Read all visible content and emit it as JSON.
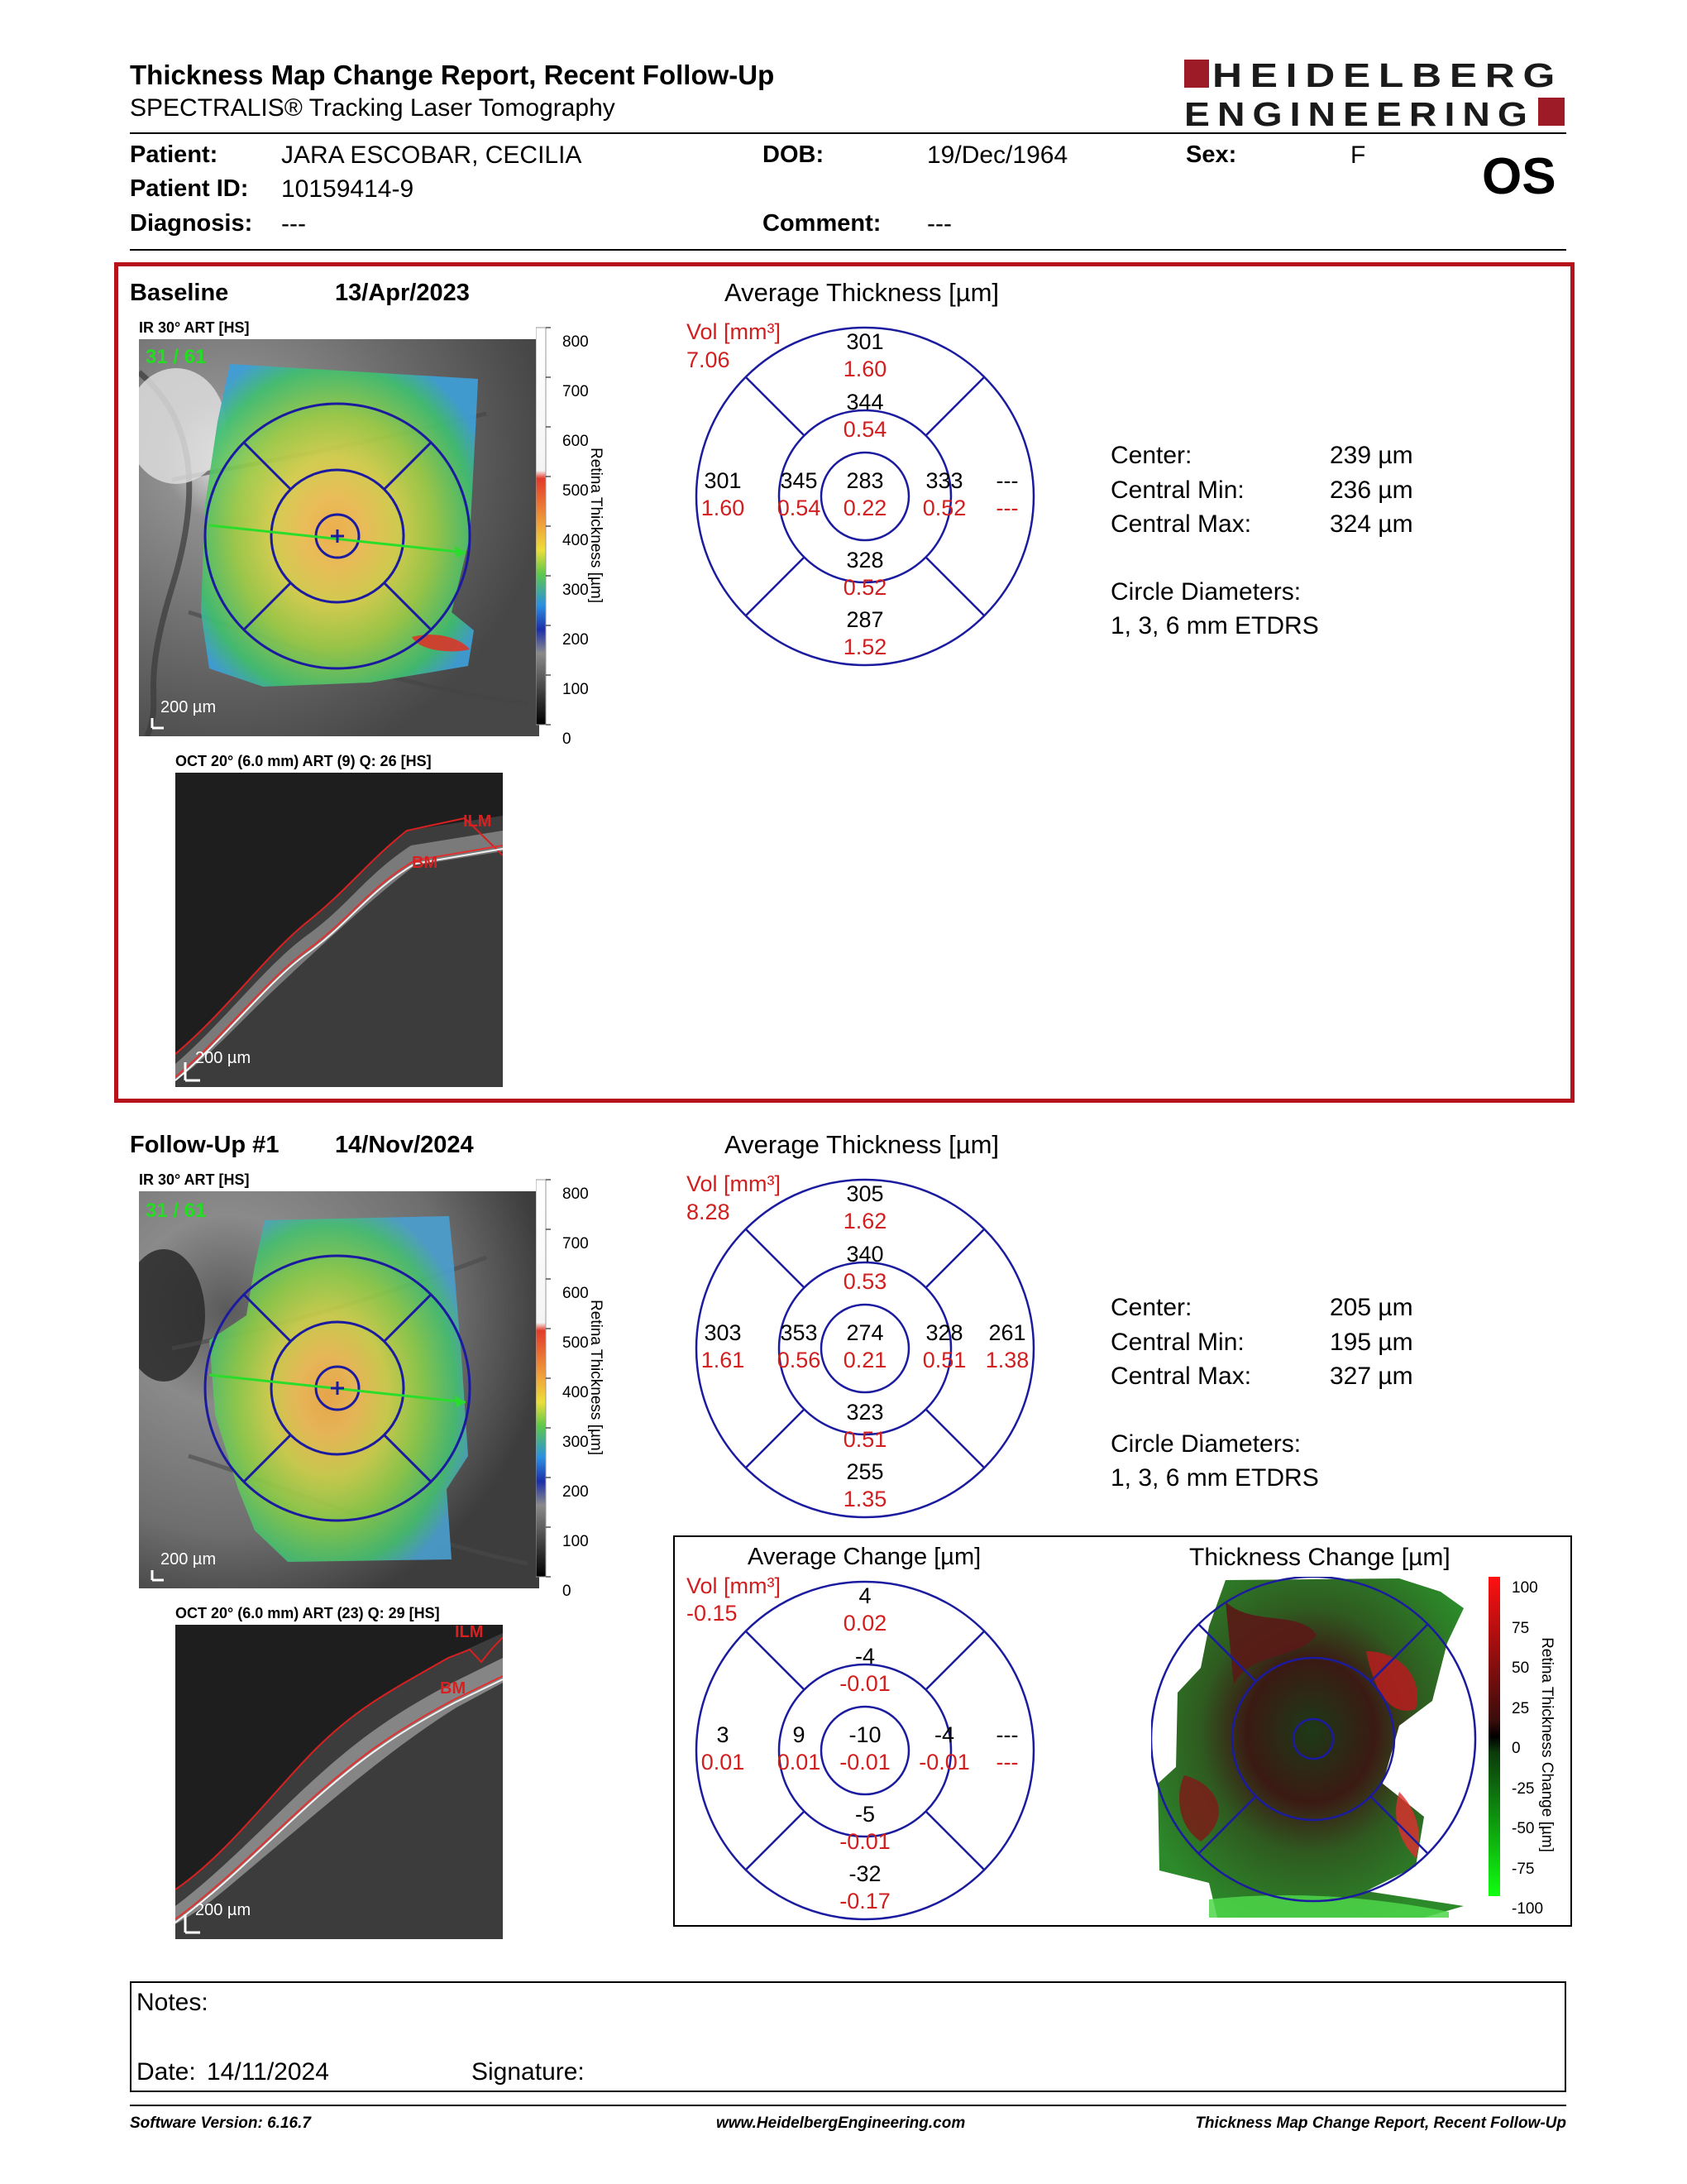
{
  "header": {
    "title": "Thickness Map Change Report, Recent Follow-Up",
    "subtitle": "SPECTRALIS® Tracking Laser Tomography",
    "logo_line1": "HEIDELBERG",
    "logo_line2": "ENGINEERING",
    "eye": "OS"
  },
  "patient": {
    "patient_label": "Patient:",
    "patient_value": "JARA ESCOBAR, CECILIA",
    "id_label": "Patient ID:",
    "id_value": "10159414-9",
    "diagnosis_label": "Diagnosis:",
    "diagnosis_value": "---",
    "dob_label": "DOB:",
    "dob_value": "19/Dec/1964",
    "comment_label": "Comment:",
    "comment_value": "---",
    "sex_label": "Sex:",
    "sex_value": "F"
  },
  "baseline": {
    "label": "Baseline",
    "date": "13/Apr/2023",
    "ir_caption": "IR 30° ART [HS]",
    "frame": "31 / 61",
    "scalebar": "200 µm",
    "colorbar_ticks": [
      "800",
      "700",
      "600",
      "500",
      "400",
      "300",
      "200",
      "100",
      "0"
    ],
    "colorbar_title": "Retina Thickness [µm]",
    "oct_caption": "OCT 20° (6.0 mm) ART (9) Q: 26 [HS]",
    "oct_scalebar": "200 µm",
    "ilm": "ILM",
    "bm": "BM",
    "avg_title": "Average Thickness [µm]",
    "vol_label": "Vol [mm³]",
    "vol_value": "7.06",
    "etdrs": {
      "center": [
        "283",
        "0.22"
      ],
      "inner_sup": [
        "344",
        "0.54"
      ],
      "inner_inf": [
        "328",
        "0.52"
      ],
      "inner_temp": [
        "345",
        "0.54"
      ],
      "inner_nas": [
        "333",
        "0.52"
      ],
      "outer_sup": [
        "301",
        "1.60"
      ],
      "outer_inf": [
        "287",
        "1.52"
      ],
      "outer_temp": [
        "301",
        "1.60"
      ],
      "outer_nas": [
        "---",
        "---"
      ]
    },
    "stats": {
      "center_label": "Center:",
      "center_value": "239 µm",
      "min_label": "Central Min:",
      "min_value": "236 µm",
      "max_label": "Central Max:",
      "max_value": "324 µm",
      "diam_label": "Circle Diameters:",
      "diam_value": "1, 3, 6 mm ETDRS"
    }
  },
  "followup": {
    "label": "Follow-Up #1",
    "date": "14/Nov/2024",
    "ir_caption": "IR 30° ART [HS]",
    "frame": "31 / 61",
    "scalebar": "200 µm",
    "colorbar_ticks": [
      "800",
      "700",
      "600",
      "500",
      "400",
      "300",
      "200",
      "100",
      "0"
    ],
    "colorbar_title": "Retina Thickness [µm]",
    "oct_caption": "OCT 20° (6.0 mm) ART (23) Q: 29 [HS]",
    "oct_scalebar": "200 µm",
    "ilm": "ILM",
    "bm": "BM",
    "avg_title": "Average Thickness [µm]",
    "vol_label": "Vol [mm³]",
    "vol_value": "8.28",
    "etdrs": {
      "center": [
        "274",
        "0.21"
      ],
      "inner_sup": [
        "340",
        "0.53"
      ],
      "inner_inf": [
        "323",
        "0.51"
      ],
      "inner_temp": [
        "353",
        "0.56"
      ],
      "inner_nas": [
        "328",
        "0.51"
      ],
      "outer_sup": [
        "305",
        "1.62"
      ],
      "outer_inf": [
        "255",
        "1.35"
      ],
      "outer_temp": [
        "303",
        "1.61"
      ],
      "outer_nas": [
        "261",
        "1.38"
      ]
    },
    "stats": {
      "center_label": "Center:",
      "center_value": "205 µm",
      "min_label": "Central Min:",
      "min_value": "195 µm",
      "max_label": "Central Max:",
      "max_value": "327 µm",
      "diam_label": "Circle Diameters:",
      "diam_value": "1, 3, 6 mm ETDRS"
    }
  },
  "change": {
    "avg_title": "Average Change [µm]",
    "vol_label": "Vol [mm³]",
    "vol_value": "-0.15",
    "etdrs": {
      "center": [
        "-10",
        "-0.01"
      ],
      "inner_sup": [
        "-4",
        "-0.01"
      ],
      "inner_inf": [
        "-5",
        "-0.01"
      ],
      "inner_temp": [
        "9",
        "0.01"
      ],
      "inner_nas": [
        "-4",
        "-0.01"
      ],
      "outer_sup": [
        "4",
        "0.02"
      ],
      "outer_inf": [
        "-32",
        "-0.17"
      ],
      "outer_temp": [
        "3",
        "0.01"
      ],
      "outer_nas": [
        "---",
        "---"
      ]
    },
    "map_title": "Thickness Change [µm]",
    "colorbar_ticks": [
      "100",
      "75",
      "50",
      "25",
      "0",
      "-25",
      "-50",
      "-75",
      "-100"
    ],
    "colorbar_title": "Retina Thickness Change [µm]"
  },
  "notes": {
    "notes_label": "Notes:",
    "date_label": "Date:",
    "date_value": "14/11/2024",
    "signature_label": "Signature:"
  },
  "footer": {
    "software": "Software Version: 6.16.7",
    "website": "www.HeidelbergEngineering.com",
    "report": "Thickness Map Change Report, Recent Follow-Up"
  },
  "colors": {
    "accent_red": "#b5121b",
    "value_red": "#d11f1f",
    "circle_blue": "#1b1ba0",
    "frame_green": "#22dd22"
  }
}
